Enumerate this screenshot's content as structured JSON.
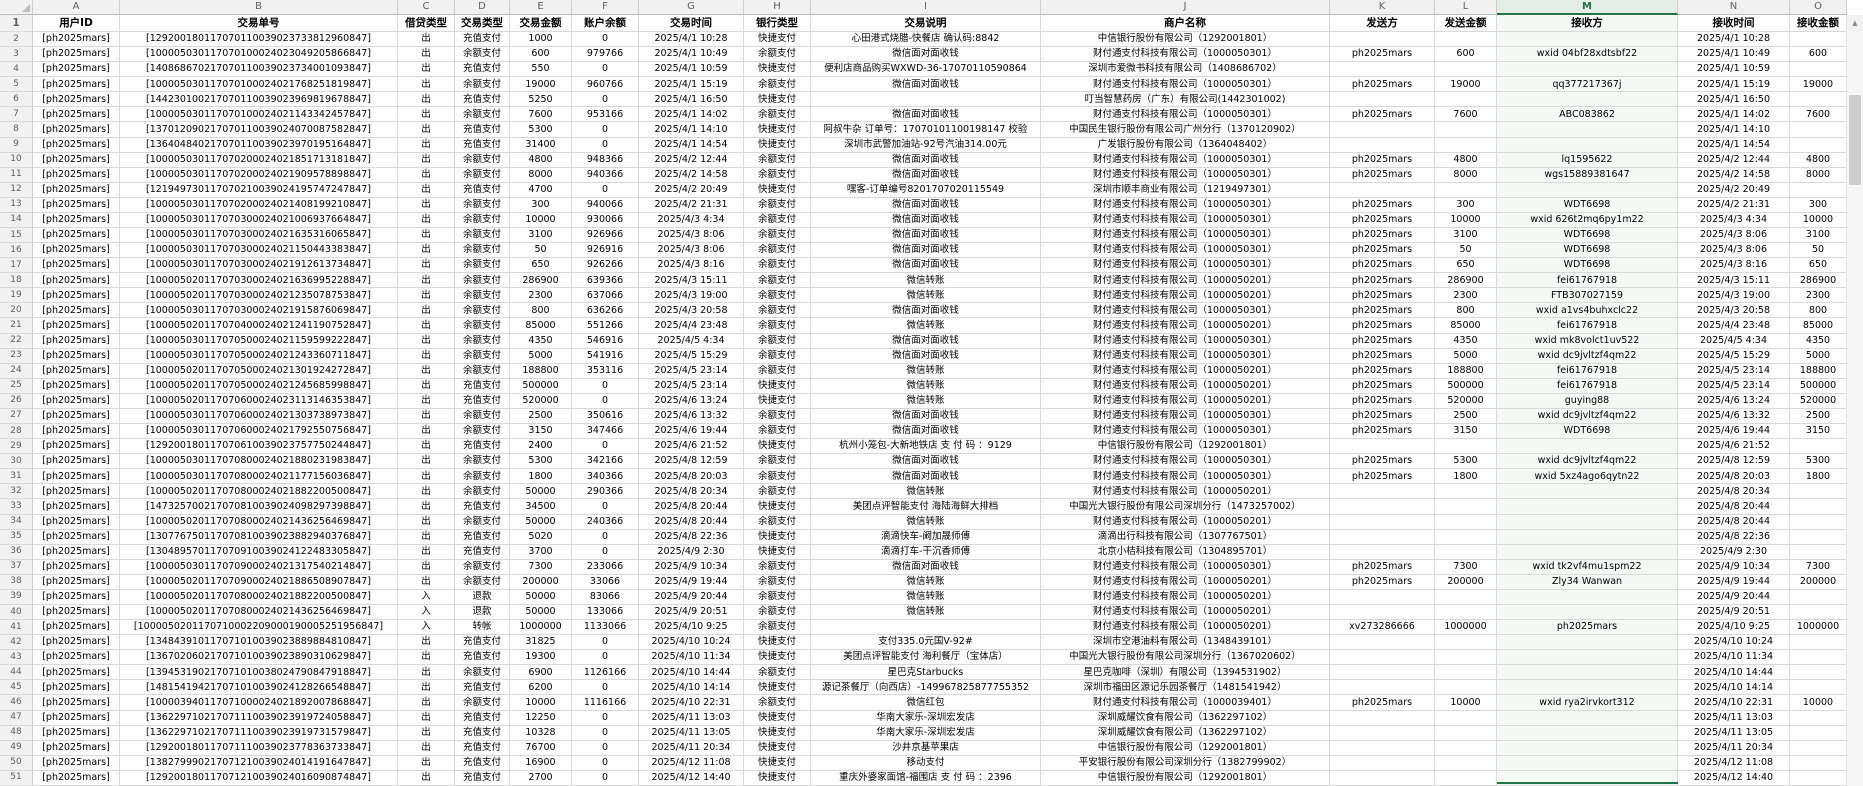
{
  "sheet": {
    "column_letters": [
      "A",
      "B",
      "C",
      "D",
      "E",
      "F",
      "G",
      "H",
      "I",
      "J",
      "K",
      "L",
      "M",
      "N",
      "O"
    ],
    "selected_column": "M",
    "header_row_number": "1",
    "headers": [
      "用户ID",
      "交易单号",
      "借贷类型",
      "交易类型",
      "交易金额",
      "账户余额",
      "交易时间",
      "银行类型",
      "交易说明",
      "商户名称",
      "发送方",
      "发送金额",
      "接收方",
      "接收时间",
      "接收金额"
    ],
    "rows": [
      [
        "[ph2025mars]",
        "[129200180117070110039023733812960847]",
        "出",
        "充值支付",
        "1000",
        "0",
        "2025/4/1 10:28",
        "快捷支付",
        "心田港式烧腊-快餐店 确认码:8842",
        "中信银行股份有限公司（1292001801）",
        "",
        "",
        "",
        "2025/4/1 10:28",
        ""
      ],
      [
        "[ph2025mars]",
        "[100005030117070100024023049205866847]",
        "出",
        "余额支付",
        "600",
        "979766",
        "2025/4/1 10:49",
        "余额支付",
        "微信面对面收钱",
        "财付通支付科技有限公司（1000050301）",
        "ph2025mars",
        "600",
        "wxid 04bf28xdtsbf22",
        "2025/4/1 10:49",
        "600"
      ],
      [
        "[ph2025mars]",
        "[140868670217070110039023734001093847]",
        "出",
        "充值支付",
        "550",
        "0",
        "2025/4/1 10:59",
        "快捷支付",
        "便利店商品购买WXWD-36-17070110590864",
        "深圳市爱微书科技有限公司（1408686702）",
        "",
        "",
        "",
        "2025/4/1 10:59",
        ""
      ],
      [
        "[ph2025mars]",
        "[100005030117070100024021768251819847]",
        "出",
        "余额支付",
        "19000",
        "960766",
        "2025/4/1 15:19",
        "余额支付",
        "微信面对面收钱",
        "财付通支付科技有限公司（1000050301）",
        "ph2025mars",
        "19000",
        "qq377217367j",
        "2025/4/1 15:19",
        "19000"
      ],
      [
        "[ph2025mars]",
        "[144230100217070110039023969819678847]",
        "出",
        "充值支付",
        "5250",
        "0",
        "2025/4/1 16:50",
        "快捷支付",
        "",
        "叮当智慧药房（广东）有限公司(1442301002)",
        "",
        "",
        "",
        "2025/4/1 16:50",
        ""
      ],
      [
        "[ph2025mars]",
        "[100005030117070100024021143342457847]",
        "出",
        "余额支付",
        "7600",
        "953166",
        "2025/4/1 14:02",
        "余额支付",
        "微信面对面收钱",
        "财付通支付科技有限公司（1000050301）",
        "ph2025mars",
        "7600",
        "ABC083862",
        "2025/4/1 14:02",
        "7600"
      ],
      [
        "[ph2025mars]",
        "[137012090217070110039024070087582847]",
        "出",
        "充值支付",
        "5300",
        "0",
        "2025/4/1 14:10",
        "快捷支付",
        "阿叔牛杂 订单号：17070101100198147 校验",
        "中国民生银行股份有限公司广州分行（1370120902）",
        "",
        "",
        "",
        "2025/4/1 14:10",
        ""
      ],
      [
        "[ph2025mars]",
        "[136404840217070110039023970195164847]",
        "出",
        "充值支付",
        "31400",
        "0",
        "2025/4/1 14:54",
        "快捷支付",
        "深圳市武警加油站-92号汽油314.00元",
        "广发银行股份有限公司（1364048402）",
        "",
        "",
        "",
        "2025/4/1 14:54",
        ""
      ],
      [
        "[ph2025mars]",
        "[100005030117070200024021851713181847]",
        "出",
        "余额支付",
        "4800",
        "948366",
        "2025/4/2 12:44",
        "余额支付",
        "微信面对面收钱",
        "财付通支付科技有限公司（1000050301）",
        "ph2025mars",
        "4800",
        "lq1595622",
        "2025/4/2 12:44",
        "4800"
      ],
      [
        "[ph2025mars]",
        "[100005030117070200024021909578898847]",
        "出",
        "余额支付",
        "8000",
        "940366",
        "2025/4/2 14:58",
        "余额支付",
        "微信面对面收钱",
        "财付通支付科技有限公司（1000050301）",
        "ph2025mars",
        "8000",
        "wgs15889381647",
        "2025/4/2 14:58",
        "8000"
      ],
      [
        "[ph2025mars]",
        "[121949730117070210039024195747247847]",
        "出",
        "充值支付",
        "4700",
        "0",
        "2025/4/2 20:49",
        "快捷支付",
        "嘿客-订单编号8201707020115549",
        "深圳市顺丰商业有限公司（1219497301）",
        "",
        "",
        "",
        "2025/4/2 20:49",
        ""
      ],
      [
        "[ph2025mars]",
        "[100005030117070200024021408199210847]",
        "出",
        "余额支付",
        "300",
        "940066",
        "2025/4/2 21:31",
        "余额支付",
        "微信面对面收钱",
        "财付通支付科技有限公司（1000050301）",
        "ph2025mars",
        "300",
        "WDT6698",
        "2025/4/2 21:31",
        "300"
      ],
      [
        "[ph2025mars]",
        "[100005030117070300024021006937664847]",
        "出",
        "余额支付",
        "10000",
        "930066",
        "2025/4/3 4:34",
        "余额支付",
        "微信面对面收钱",
        "财付通支付科技有限公司（1000050301）",
        "ph2025mars",
        "10000",
        "wxid 626t2mq6py1m22",
        "2025/4/3 4:34",
        "10000"
      ],
      [
        "[ph2025mars]",
        "[100005030117070300024021635316065847]",
        "出",
        "余额支付",
        "3100",
        "926966",
        "2025/4/3 8:06",
        "余额支付",
        "微信面对面收钱",
        "财付通支付科技有限公司（1000050301）",
        "ph2025mars",
        "3100",
        "WDT6698",
        "2025/4/3 8:06",
        "3100"
      ],
      [
        "[ph2025mars]",
        "[100005030117070300024021150443383847]",
        "出",
        "余额支付",
        "50",
        "926916",
        "2025/4/3 8:06",
        "余额支付",
        "微信面对面收钱",
        "财付通支付科技有限公司（1000050301）",
        "ph2025mars",
        "50",
        "WDT6698",
        "2025/4/3 8:06",
        "50"
      ],
      [
        "[ph2025mars]",
        "[100005030117070300024021912613734847]",
        "出",
        "余额支付",
        "650",
        "926266",
        "2025/4/3 8:16",
        "余额支付",
        "微信面对面收钱",
        "财付通支付科技有限公司（1000050301）",
        "ph2025mars",
        "650",
        "WDT6698",
        "2025/4/3 8:16",
        "650"
      ],
      [
        "[ph2025mars]",
        "[100005020117070300024021636995228847]",
        "出",
        "余额支付",
        "286900",
        "639366",
        "2025/4/3 15:11",
        "余额支付",
        "微信转账",
        "财付通支付科技有限公司（1000050201）",
        "ph2025mars",
        "286900",
        "fei61767918",
        "2025/4/3 15:11",
        "286900"
      ],
      [
        "[ph2025mars]",
        "[100005020117070300024021235078753847]",
        "出",
        "余额支付",
        "2300",
        "637066",
        "2025/4/3 19:00",
        "余额支付",
        "微信转账",
        "财付通支付科技有限公司（1000050201）",
        "ph2025mars",
        "2300",
        "FTB307027159",
        "2025/4/3 19:00",
        "2300"
      ],
      [
        "[ph2025mars]",
        "[100005030117070300024021915876069847]",
        "出",
        "余额支付",
        "800",
        "636266",
        "2025/4/3 20:58",
        "余额支付",
        "微信面对面收钱",
        "财付通支付科技有限公司（1000050301）",
        "ph2025mars",
        "800",
        "wxid a1vs4buhxclc22",
        "2025/4/3 20:58",
        "800"
      ],
      [
        "[ph2025mars]",
        "[100005020117070400024021241190752847]",
        "出",
        "余额支付",
        "85000",
        "551266",
        "2025/4/4 23:48",
        "余额支付",
        "微信转账",
        "财付通支付科技有限公司（1000050201）",
        "ph2025mars",
        "85000",
        "fei61767918",
        "2025/4/4 23:48",
        "85000"
      ],
      [
        "[ph2025mars]",
        "[100005030117070500024021159599222847]",
        "出",
        "余额支付",
        "4350",
        "546916",
        "2025/4/5 4:34",
        "余额支付",
        "微信面对面收钱",
        "财付通支付科技有限公司（1000050301）",
        "ph2025mars",
        "4350",
        "wxid mk8volct1uv522",
        "2025/4/5 4:34",
        "4350"
      ],
      [
        "[ph2025mars]",
        "[100005030117070500024021243360711847]",
        "出",
        "余额支付",
        "5000",
        "541916",
        "2025/4/5 15:29",
        "余额支付",
        "微信面对面收钱",
        "财付通支付科技有限公司（1000050301）",
        "ph2025mars",
        "5000",
        "wxid dc9jvltzf4qm22",
        "2025/4/5 15:29",
        "5000"
      ],
      [
        "[ph2025mars]",
        "[100005020117070500024021301924272847]",
        "出",
        "余额支付",
        "188800",
        "353116",
        "2025/4/5 23:14",
        "余额支付",
        "微信转账",
        "财付通支付科技有限公司（1000050201）",
        "ph2025mars",
        "188800",
        "fei61767918",
        "2025/4/5 23:14",
        "188800"
      ],
      [
        "[ph2025mars]",
        "[100005020117070500024021245685998847]",
        "出",
        "充值支付",
        "500000",
        "0",
        "2025/4/5 23:14",
        "快捷支付",
        "微信转账",
        "财付通支付科技有限公司（1000050201）",
        "ph2025mars",
        "500000",
        "fei61767918",
        "2025/4/5 23:14",
        "500000"
      ],
      [
        "[ph2025mars]",
        "[100005020117070600024023113146353847]",
        "出",
        "充值支付",
        "520000",
        "0",
        "2025/4/6 13:24",
        "快捷支付",
        "微信转账",
        "财付通支付科技有限公司（1000050201）",
        "ph2025mars",
        "520000",
        "guying88",
        "2025/4/6 13:24",
        "520000"
      ],
      [
        "[ph2025mars]",
        "[100005030117070600024021303738973847]",
        "出",
        "余额支付",
        "2500",
        "350616",
        "2025/4/6 13:32",
        "余额支付",
        "微信面对面收钱",
        "财付通支付科技有限公司（1000050301）",
        "ph2025mars",
        "2500",
        "wxid dc9jvltzf4qm22",
        "2025/4/6 13:32",
        "2500"
      ],
      [
        "[ph2025mars]",
        "[100005030117070600024021792550756847]",
        "出",
        "余额支付",
        "3150",
        "347466",
        "2025/4/6 19:44",
        "余额支付",
        "微信面对面收钱",
        "财付通支付科技有限公司（1000050301）",
        "ph2025mars",
        "3150",
        "WDT6698",
        "2025/4/6 19:44",
        "3150"
      ],
      [
        "[ph2025mars]",
        "[129200180117070610039023757750244847]",
        "出",
        "充值支付",
        "2400",
        "0",
        "2025/4/6 21:52",
        "快捷支付",
        "杭州小笼包-大新地铁店 支 付 码 ：9129",
        "中信银行股份有限公司（1292001801）",
        "",
        "",
        "",
        "2025/4/6 21:52",
        ""
      ],
      [
        "[ph2025mars]",
        "[100005030117070800024021880231983847]",
        "出",
        "余额支付",
        "5300",
        "342166",
        "2025/4/8 12:59",
        "余额支付",
        "微信面对面收钱",
        "财付通支付科技有限公司（1000050301）",
        "ph2025mars",
        "5300",
        "wxid dc9jvltzf4qm22",
        "2025/4/8 12:59",
        "5300"
      ],
      [
        "[ph2025mars]",
        "[100005030117070800024021177156036847]",
        "出",
        "余额支付",
        "1800",
        "340366",
        "2025/4/8 20:03",
        "余额支付",
        "微信面对面收钱",
        "财付通支付科技有限公司（1000050301）",
        "ph2025mars",
        "1800",
        "wxid 5xz4ago6qytn22",
        "2025/4/8 20:03",
        "1800"
      ],
      [
        "[ph2025mars]",
        "[100005020117070800024021882200500847]",
        "出",
        "余额支付",
        "50000",
        "290366",
        "2025/4/8 20:34",
        "余额支付",
        "微信转账",
        "财付通支付科技有限公司（1000050201）",
        "",
        "",
        "",
        "2025/4/8 20:34",
        ""
      ],
      [
        "[ph2025mars]",
        "[147325700217070810039024098297398847]",
        "出",
        "充值支付",
        "34500",
        "0",
        "2025/4/8 20:44",
        "快捷支付",
        "美团点评智能支付 海陆海鲜大排档",
        "中国光大银行股份有限公司深圳分行（1473257002）",
        "",
        "",
        "",
        "2025/4/8 20:44",
        ""
      ],
      [
        "[ph2025mars]",
        "[100005020117070800024021436256469847]",
        "出",
        "余额支付",
        "50000",
        "240366",
        "2025/4/8 20:44",
        "余额支付",
        "微信转账",
        "财付通支付科技有限公司（1000050201）",
        "",
        "",
        "",
        "2025/4/8 20:44",
        ""
      ],
      [
        "[ph2025mars]",
        "[130776750117070810039023882940376847]",
        "出",
        "充值支付",
        "5020",
        "0",
        "2025/4/8 22:36",
        "快捷支付",
        "滴滴快车-阚加晟师傅",
        "滴滴出行科技有限公司（1307767501）",
        "",
        "",
        "",
        "2025/4/8 22:36",
        ""
      ],
      [
        "[ph2025mars]",
        "[130489570117070910039024122483305847]",
        "出",
        "充值支付",
        "3700",
        "0",
        "2025/4/9 2:30",
        "快捷支付",
        "滴滴打车-干沉香师傅",
        "北京小桔科技有限公司（1304895701）",
        "",
        "",
        "",
        "2025/4/9 2:30",
        ""
      ],
      [
        "[ph2025mars]",
        "[100005030117070900024021317540214847]",
        "出",
        "余额支付",
        "7300",
        "233066",
        "2025/4/9 10:34",
        "余额支付",
        "微信面对面收钱",
        "财付通支付科技有限公司（1000050301）",
        "ph2025mars",
        "7300",
        "wxid tk2vf4mu1spm22",
        "2025/4/9 10:34",
        "7300"
      ],
      [
        "[ph2025mars]",
        "[100005020117070900024021886508907847]",
        "出",
        "余额支付",
        "200000",
        "33066",
        "2025/4/9 19:44",
        "余额支付",
        "微信转账",
        "财付通支付科技有限公司（1000050201）",
        "ph2025mars",
        "200000",
        "Zly34 Wanwan",
        "2025/4/9 19:44",
        "200000"
      ],
      [
        "[ph2025mars]",
        "[100005020117070800024021882200500847]",
        "入",
        "退款",
        "50000",
        "83066",
        "2025/4/9 20:44",
        "余额支付",
        "微信转账",
        "财付通支付科技有限公司（1000050201）",
        "",
        "",
        "",
        "2025/4/9 20:44",
        ""
      ],
      [
        "[ph2025mars]",
        "[100005020117070800024021436256469847]",
        "入",
        "退款",
        "50000",
        "133066",
        "2025/4/9 20:51",
        "余额支付",
        "微信转账",
        "财付通支付科技有限公司（1000050201）",
        "",
        "",
        "",
        "2025/4/9 20:51",
        ""
      ],
      [
        "[ph2025mars]",
        "[1000050201170710002209000190005251956847]",
        "入",
        "转帐",
        "1000000",
        "1133066",
        "2025/4/10 9:25",
        "余额支付",
        "",
        "财付通支付科技有限公司（1000050201）",
        "xv273286666",
        "1000000",
        "ph2025mars",
        "2025/4/10 9:25",
        "1000000"
      ],
      [
        "[ph2025mars]",
        "[134843910117071010039023889884810847]",
        "出",
        "充值支付",
        "31825",
        "0",
        "2025/4/10 10:24",
        "快捷支付",
        "支付335.0元国V-92#",
        "深圳市空港油料有限公司（1348439101）",
        "",
        "",
        "",
        "2025/4/10 10:24",
        ""
      ],
      [
        "[ph2025mars]",
        "[136702060217071010039023890310629847]",
        "出",
        "充值支付",
        "19300",
        "0",
        "2025/4/10 11:34",
        "快捷支付",
        "美团点评智能支付 海利餐厅（宝体店）",
        "中国光大银行股份有限公司深圳分行（1367020602）",
        "",
        "",
        "",
        "2025/4/10 11:34",
        ""
      ],
      [
        "[ph2025mars]",
        "[139453190217071010038024790847918847]",
        "出",
        "余额支付",
        "6900",
        "1126166",
        "2025/4/10 14:44",
        "余额支付",
        "星巴克Starbucks",
        "星巴克咖啡（深圳）有限公司（1394531902）",
        "",
        "",
        "",
        "2025/4/10 14:44",
        ""
      ],
      [
        "[ph2025mars]",
        "[148154194217071010039024128266548847]",
        "出",
        "充值支付",
        "6200",
        "0",
        "2025/4/10 14:14",
        "快捷支付",
        "源记茶餐厅（向西店）-149967825877755352",
        "深圳市福田区源记乐园茶餐厅（1481541942）",
        "",
        "",
        "",
        "2025/4/10 14:14",
        ""
      ],
      [
        "[ph2025mars]",
        "[100003940117071000024021892007868847]",
        "出",
        "余额支付",
        "10000",
        "1116166",
        "2025/4/10 22:31",
        "余额支付",
        "微信红包",
        "财付通支付科技有限公司（1000039401）",
        "ph2025mars",
        "10000",
        "wxid rya2irvkort312",
        "2025/4/10 22:31",
        "10000"
      ],
      [
        "[ph2025mars]",
        "[136229710217071110039023919724058847]",
        "出",
        "充值支付",
        "12250",
        "0",
        "2025/4/11 13:03",
        "快捷支付",
        "华南大家乐-深圳宏发店",
        "深圳威耀饮食有限公司（1362297102）",
        "",
        "",
        "",
        "2025/4/11 13:03",
        ""
      ],
      [
        "[ph2025mars]",
        "[136229710217071110039023919731579847]",
        "出",
        "充值支付",
        "10328",
        "0",
        "2025/4/11 13:05",
        "快捷支付",
        "华南大家乐-深圳宏发店",
        "深圳威耀饮食有限公司（1362297102）",
        "",
        "",
        "",
        "2025/4/11 13:05",
        ""
      ],
      [
        "[ph2025mars]",
        "[129200180117071110039023778363733847]",
        "出",
        "充值支付",
        "76700",
        "0",
        "2025/4/11 20:34",
        "快捷支付",
        "沙井京基苹果店",
        "中信银行股份有限公司（1292001801）",
        "",
        "",
        "",
        "2025/4/11 20:34",
        ""
      ],
      [
        "[ph2025mars]",
        "[138279990217071210039024014191647847]",
        "出",
        "充值支付",
        "16900",
        "0",
        "2025/4/12 11:08",
        "快捷支付",
        "移动支付",
        "平安银行股份有限公司深圳分行（1382799902）",
        "",
        "",
        "",
        "2025/4/12 11:08",
        ""
      ],
      [
        "[ph2025mars]",
        "[129200180117071210039024016090874847]",
        "出",
        "充值支付",
        "2700",
        "0",
        "2025/4/12 14:40",
        "快捷支付",
        "重庆外婆家面馆-福围店 支 付 码 ：2396",
        "中信银行股份有限公司（1292001801）",
        "",
        "",
        "",
        "2025/4/12 14:40",
        ""
      ]
    ]
  },
  "colors": {
    "selection_green": "#217346",
    "gridline": "#d9d9d9"
  },
  "scrollbar": {
    "up_arrow": "▲"
  }
}
